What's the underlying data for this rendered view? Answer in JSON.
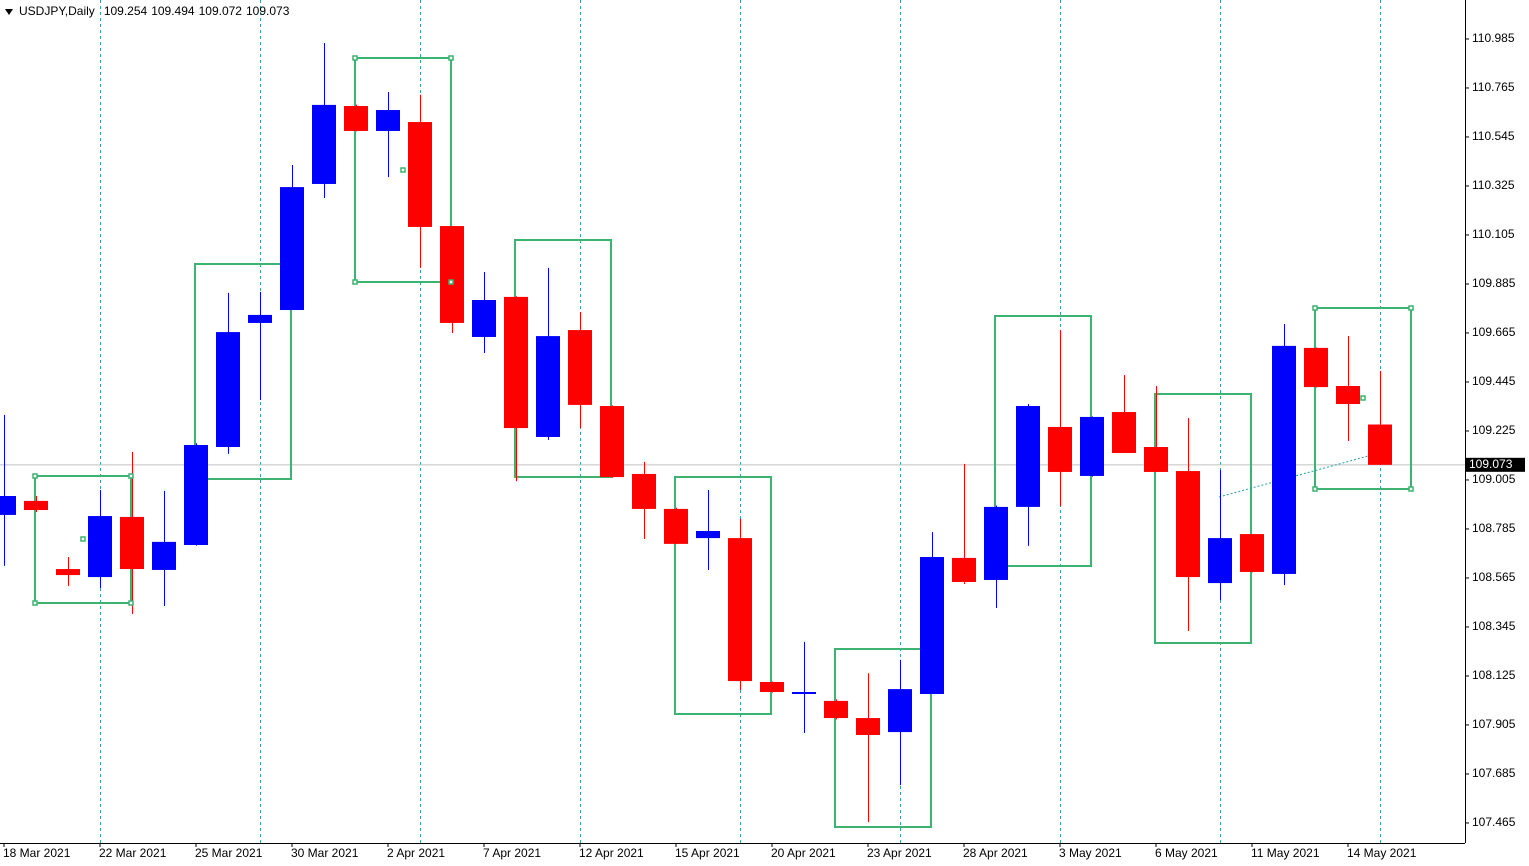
{
  "chart_data": {
    "type": "candlestick",
    "title": "USDJPY,Daily",
    "categories": [
      "18 Mar 2021",
      null,
      null,
      "22 Mar 2021",
      null,
      null,
      "25 Mar 2021",
      null,
      null,
      "30 Mar 2021",
      null,
      null,
      "2 Apr 2021",
      null,
      null,
      "7 Apr 2021",
      null,
      null,
      "12 Apr 2021",
      null,
      null,
      "15 Apr 2021",
      null,
      null,
      "20 Apr 2021",
      null,
      null,
      "23 Apr 2021",
      null,
      null,
      "28 Apr 2021",
      null,
      null,
      "3 May 2021",
      null,
      null,
      "6 May 2021",
      null,
      null,
      "11 May 2021",
      null,
      null,
      "14 May 2021",
      null
    ],
    "open": [
      108.848,
      108.911,
      108.605,
      108.569,
      108.839,
      108.601,
      108.713,
      109.153,
      109.71,
      109.768,
      110.334,
      110.684,
      110.572,
      110.612,
      110.145,
      109.647,
      109.827,
      109.198,
      109.678,
      109.337,
      109.032,
      108.875,
      108.744,
      108.744,
      108.098,
      108.044,
      108.013,
      107.936,
      107.873,
      108.044,
      108.655,
      108.556,
      108.884,
      109.243,
      109.023,
      109.31,
      109.153,
      109.045,
      108.542,
      108.762,
      108.583,
      109.598,
      109.427,
      109.254
    ],
    "high": [
      109.297,
      108.933,
      108.659,
      108.96,
      109.131,
      108.956,
      109.17,
      109.845,
      109.849,
      110.419,
      110.967,
      110.69,
      110.747,
      110.734,
      110.145,
      109.939,
      109.83,
      109.957,
      109.759,
      109.34,
      109.086,
      108.88,
      108.96,
      108.83,
      108.1,
      108.278,
      108.02,
      108.138,
      108.197,
      108.771,
      109.077,
      108.89,
      109.346,
      109.678,
      109.29,
      109.476,
      109.427,
      109.283,
      109.05,
      108.76,
      109.705,
      109.6,
      109.651,
      109.494
    ],
    "low": [
      108.619,
      108.861,
      108.529,
      108.52,
      108.403,
      108.439,
      108.71,
      109.122,
      109.364,
      109.768,
      110.271,
      110.57,
      110.365,
      109.957,
      109.665,
      109.575,
      109.0,
      109.185,
      109.238,
      109.015,
      108.74,
      108.718,
      108.601,
      108.062,
      108.05,
      107.869,
      107.93,
      107.469,
      107.635,
      108.044,
      108.538,
      108.43,
      108.709,
      108.888,
      109.02,
      109.126,
      109.04,
      108.327,
      108.466,
      108.59,
      108.533,
      109.42,
      109.18,
      109.072
    ],
    "close": [
      108.933,
      108.87,
      108.578,
      108.843,
      108.605,
      108.727,
      109.162,
      109.669,
      109.746,
      110.32,
      110.689,
      110.572,
      110.666,
      110.141,
      109.71,
      109.813,
      109.238,
      109.651,
      109.342,
      109.018,
      108.875,
      108.718,
      108.776,
      108.102,
      108.053,
      108.053,
      107.936,
      107.86,
      108.066,
      108.659,
      108.547,
      108.884,
      109.337,
      109.041,
      109.288,
      109.126,
      109.041,
      108.569,
      108.744,
      108.592,
      109.607,
      109.422,
      109.346,
      109.073
    ],
    "up_color": "#0000ff",
    "down_color": "#ff0000",
    "ylim": [
      107.375,
      111.16
    ],
    "yticks": [
      110.985,
      110.765,
      110.545,
      110.325,
      110.105,
      109.885,
      109.665,
      109.445,
      109.225,
      109.005,
      108.785,
      108.565,
      108.345,
      108.125,
      107.905,
      107.685,
      107.465
    ]
  }
}
